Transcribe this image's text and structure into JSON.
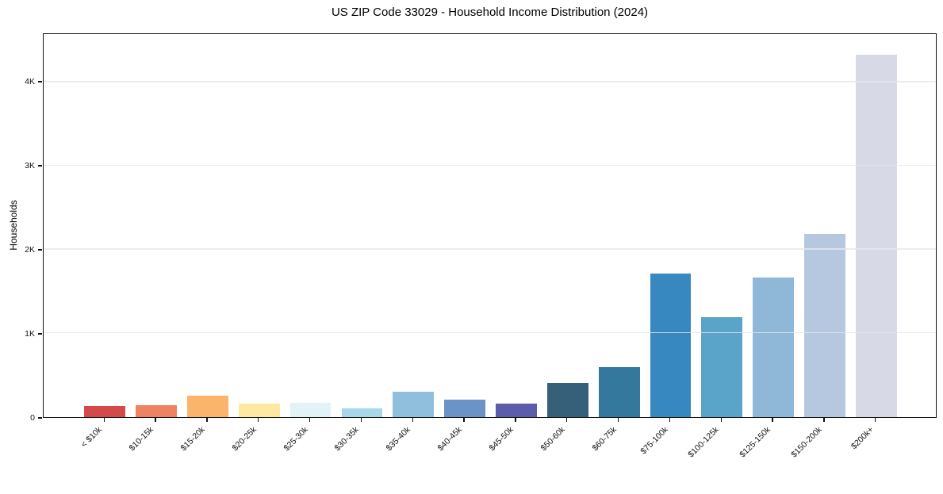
{
  "chart_data": {
    "type": "bar",
    "title": "US ZIP Code 33029 - Household Income Distribution (2024)",
    "xlabel": "",
    "ylabel": "Households",
    "categories": [
      "< $10k",
      "$10-15k",
      "$15-20k",
      "$20-25k",
      "$25-30k",
      "$30-35k",
      "$35-40k",
      "$40-45k",
      "$45-50k",
      "$50-60k",
      "$60-75k",
      "$75-100k",
      "$100-125k",
      "$125-150k",
      "$150-200k",
      "$200k+"
    ],
    "values": [
      135,
      145,
      260,
      160,
      175,
      100,
      305,
      210,
      160,
      410,
      600,
      1715,
      1190,
      1665,
      2190,
      4330
    ],
    "bar_colors": [
      "#d6494b",
      "#ef8261",
      "#fbb46c",
      "#fde9a1",
      "#e2f3f8",
      "#a6d8e9",
      "#90bedd",
      "#6b93c8",
      "#5c5cad",
      "#36607a",
      "#34799d",
      "#3787c0",
      "#5ba4c9",
      "#8fb7d7",
      "#b6c8e0",
      "#d7d9e7"
    ],
    "ylim": [
      0,
      4575
    ],
    "yticks": [
      {
        "value": 0,
        "label": "0"
      },
      {
        "value": 1000,
        "label": "1K"
      },
      {
        "value": 2000,
        "label": "2K"
      },
      {
        "value": 3000,
        "label": "3K"
      },
      {
        "value": 4000,
        "label": "4K"
      }
    ],
    "x_tick_rotation": 45,
    "grid": "horizontal-only",
    "gridline_color": "#e8e9ee",
    "legend": "none",
    "plot_background": "#ffffff"
  }
}
